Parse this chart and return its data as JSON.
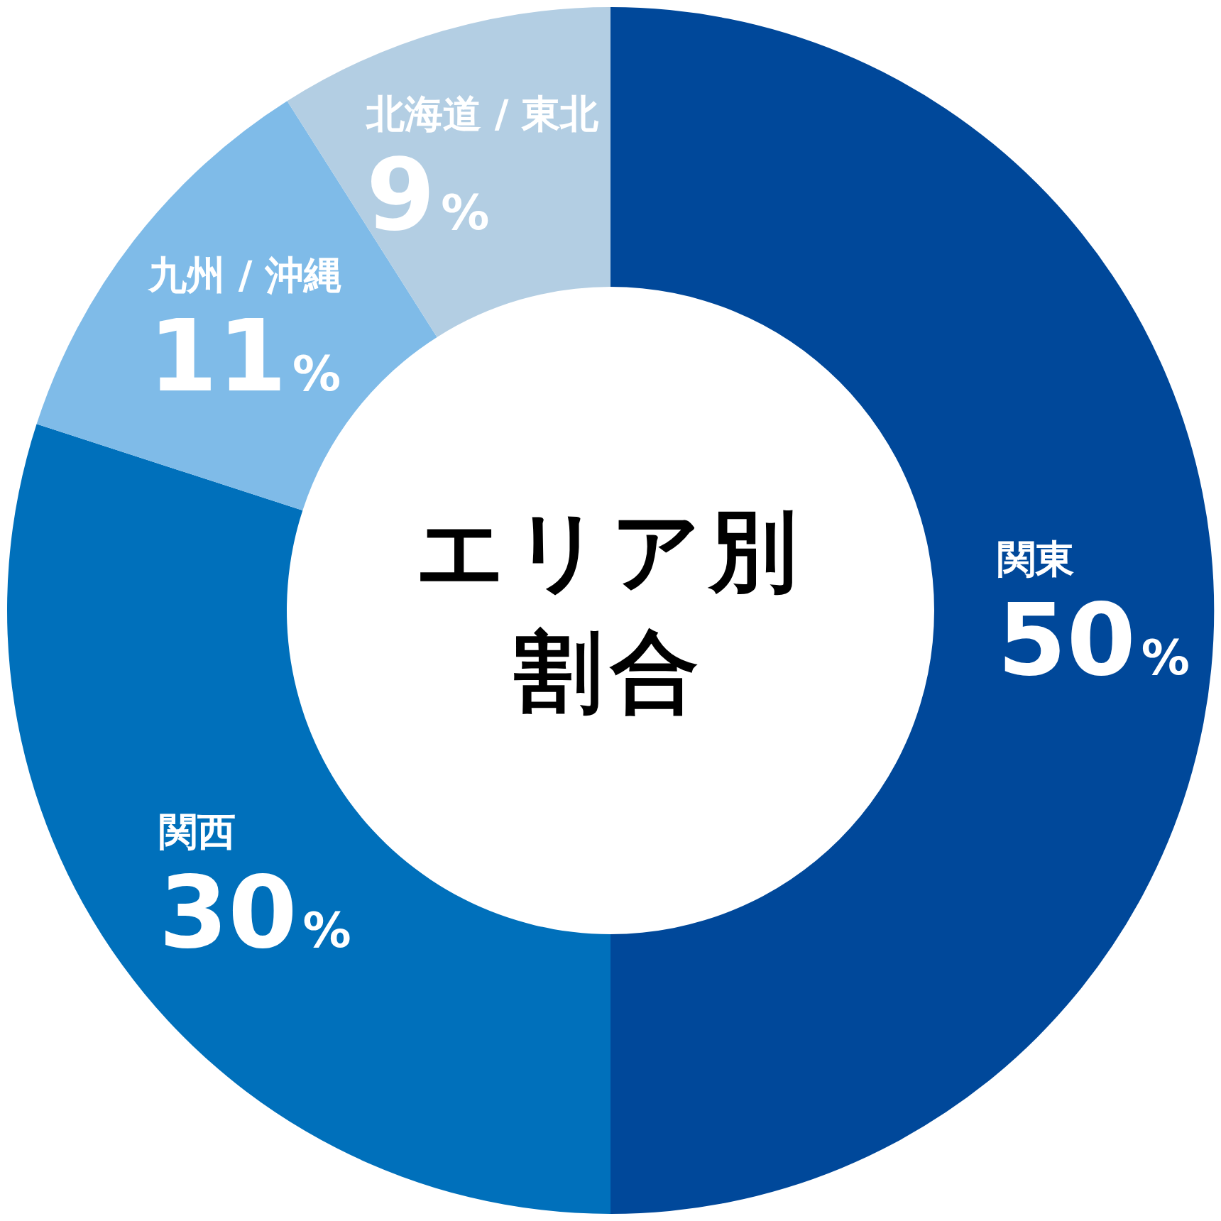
{
  "chart_data": {
    "type": "donut",
    "title": "エリア別割合",
    "categories": [
      "関東",
      "関西",
      "九州 / 沖縄",
      "北海道 / 東北"
    ],
    "values": [
      50,
      30,
      11,
      9
    ],
    "value_labels": [
      "50%",
      "30%",
      "11%",
      "9%"
    ],
    "colors": [
      "#00489a",
      "#0070bb",
      "#7fbbe8",
      "#b3cee3"
    ]
  }
}
